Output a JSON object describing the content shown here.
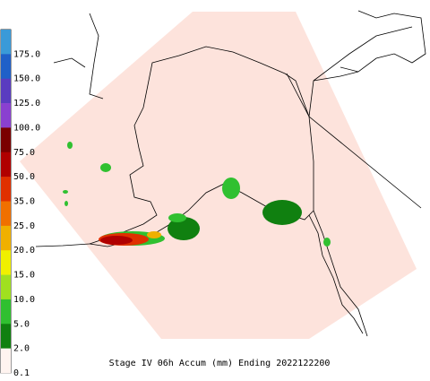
{
  "title": "Stage IV 06h Accum (mm) Ending 2022122200",
  "colorbar": {
    "labels": [
      "175.0",
      "150.0",
      "125.0",
      "100.0",
      "75.0",
      "50.0",
      "35.0",
      "25.0",
      "20.0",
      "15.0",
      "10.0",
      "5.0",
      "2.0",
      "0.1"
    ],
    "colors": [
      "#3a9ad8",
      "#2060c8",
      "#5a3cc0",
      "#8a40d0",
      "#7a0000",
      "#b00000",
      "#e03000",
      "#f07000",
      "#f0b000",
      "#f0f000",
      "#a0e020",
      "#30c030",
      "#108010",
      "#fff4f0"
    ]
  }
}
